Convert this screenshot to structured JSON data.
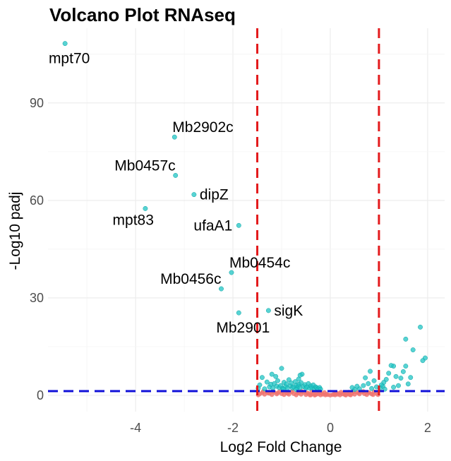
{
  "chart_data": {
    "type": "scatter",
    "title": "Volcano Plot RNAseq",
    "xlabel": "Log2 Fold Change",
    "ylabel": "-Log10 padj",
    "xlim": [
      -5.8,
      2.35
    ],
    "ylim": [
      -5,
      113
    ],
    "x_ticks": [
      -4,
      -2,
      0,
      2
    ],
    "y_ticks": [
      0,
      30,
      60,
      90
    ],
    "grid": true,
    "thresholds": {
      "log2fc_low": -1.5,
      "log2fc_high": 1.0,
      "neg_log10_padj": 1.3,
      "vertical_line_color": "#e31a1c",
      "horizontal_line_color": "#1010d8"
    },
    "colors": {
      "significant": "#1fc4c4",
      "not_significant": "#f07470"
    },
    "labeled_points": [
      {
        "gene": "mpt70",
        "x": -5.45,
        "y": 108.3,
        "label_anchor": "below"
      },
      {
        "gene": "Mb2902c",
        "x": -3.2,
        "y": 79.5,
        "label_anchor": "above-right"
      },
      {
        "gene": "Mb0457c",
        "x": -3.18,
        "y": 67.7,
        "label_anchor": "above-left"
      },
      {
        "gene": "dipZ",
        "x": -2.8,
        "y": 61.8,
        "label_anchor": "right"
      },
      {
        "gene": "mpt83",
        "x": -3.8,
        "y": 57.5,
        "label_anchor": "below-left"
      },
      {
        "gene": "ufaA1",
        "x": -1.88,
        "y": 52.3,
        "label_anchor": "left"
      },
      {
        "gene": "Mb0454c",
        "x": -2.03,
        "y": 37.8,
        "label_anchor": "above-right"
      },
      {
        "gene": "Mb0456c",
        "x": -2.24,
        "y": 32.8,
        "label_anchor": "above-left"
      },
      {
        "gene": "sigK",
        "x": -1.27,
        "y": 26.1,
        "label_anchor": "right"
      },
      {
        "gene": "Mb2901",
        "x": -1.88,
        "y": 25.4,
        "label_anchor": "below"
      }
    ],
    "significant_points": [
      [
        1.85,
        21.0
      ],
      [
        1.55,
        17.3
      ],
      [
        1.95,
        11.5
      ],
      [
        1.9,
        10.7
      ],
      [
        1.7,
        14.0
      ],
      [
        1.55,
        9.0
      ],
      [
        1.5,
        7.3
      ],
      [
        1.45,
        5.3
      ],
      [
        1.6,
        3.5
      ],
      [
        1.65,
        5.5
      ],
      [
        1.35,
        5.8
      ],
      [
        1.3,
        9.0
      ],
      [
        1.25,
        9.2
      ],
      [
        1.2,
        6.8
      ],
      [
        1.15,
        4.9
      ],
      [
        1.1,
        4.0
      ],
      [
        1.08,
        2.8
      ],
      [
        1.3,
        2.5
      ],
      [
        1.4,
        3.0
      ],
      [
        1.05,
        3.2
      ],
      [
        1.12,
        1.9
      ],
      [
        1.02,
        2.2
      ],
      [
        0.9,
        4.5
      ],
      [
        0.82,
        7.4
      ],
      [
        0.78,
        3.6
      ],
      [
        0.72,
        5.4
      ],
      [
        0.68,
        3.0
      ],
      [
        0.85,
        2.1
      ],
      [
        0.95,
        2.6
      ],
      [
        0.6,
        2.0
      ],
      [
        0.55,
        2.8
      ],
      [
        0.5,
        1.8
      ],
      [
        0.45,
        2.4
      ],
      [
        -1.48,
        2.2
      ],
      [
        -1.45,
        3.2
      ],
      [
        -1.4,
        5.5
      ],
      [
        -1.35,
        2.0
      ],
      [
        -1.3,
        4.1
      ],
      [
        -1.25,
        2.6
      ],
      [
        -1.22,
        3.4
      ],
      [
        -1.2,
        6.5
      ],
      [
        -1.18,
        2.2
      ],
      [
        -1.15,
        3.6
      ],
      [
        -1.1,
        2.8
      ],
      [
        -1.08,
        4.5
      ],
      [
        -1.05,
        2.4
      ],
      [
        -1.02,
        3.0
      ],
      [
        -1.0,
        8.3
      ],
      [
        -0.98,
        2.1
      ],
      [
        -0.95,
        4.0
      ],
      [
        -0.92,
        2.7
      ],
      [
        -0.9,
        3.5
      ],
      [
        -0.88,
        2.2
      ],
      [
        -0.85,
        4.8
      ],
      [
        -0.82,
        2.9
      ],
      [
        -0.8,
        3.8
      ],
      [
        -0.78,
        2.3
      ],
      [
        -0.75,
        2.6
      ],
      [
        -0.72,
        4.2
      ],
      [
        -0.7,
        3.1
      ],
      [
        -0.68,
        2.2
      ],
      [
        -0.66,
        2.8
      ],
      [
        -0.64,
        3.4
      ],
      [
        -0.62,
        2.4
      ],
      [
        -0.6,
        3.9
      ],
      [
        -0.58,
        6.5
      ],
      [
        -0.55,
        2.7
      ],
      [
        -0.52,
        3.3
      ],
      [
        -0.5,
        2.2
      ],
      [
        -0.48,
        2.6
      ],
      [
        -0.45,
        3.6
      ],
      [
        -0.42,
        2.2
      ],
      [
        -0.4,
        2.9
      ],
      [
        -0.38,
        2.4
      ],
      [
        -0.35,
        3.2
      ],
      [
        -0.32,
        2.1
      ],
      [
        -0.3,
        2.6
      ],
      [
        -0.28,
        2.3
      ],
      [
        -0.25,
        2.0
      ],
      [
        -0.22,
        2.4
      ],
      [
        -0.2,
        1.9
      ],
      [
        -0.62,
        6.2
      ],
      [
        -0.65,
        5.0
      ],
      [
        -1.12,
        5.8
      ],
      [
        -0.7,
        1.8
      ],
      [
        -0.96,
        1.9
      ]
    ],
    "not_significant_points": [
      [
        -1.45,
        0.4
      ],
      [
        -1.4,
        0.8
      ],
      [
        -1.35,
        0.3
      ],
      [
        -1.3,
        1.0
      ],
      [
        -1.25,
        0.6
      ],
      [
        -1.2,
        0.2
      ],
      [
        -1.15,
        0.9
      ],
      [
        -1.1,
        0.4
      ],
      [
        -1.05,
        1.1
      ],
      [
        -1.0,
        0.5
      ],
      [
        -0.95,
        0.2
      ],
      [
        -0.9,
        0.8
      ],
      [
        -0.85,
        0.3
      ],
      [
        -0.8,
        1.0
      ],
      [
        -0.75,
        0.5
      ],
      [
        -0.7,
        0.1
      ],
      [
        -0.65,
        0.7
      ],
      [
        -0.6,
        0.3
      ],
      [
        -0.55,
        0.9
      ],
      [
        -0.5,
        0.2
      ],
      [
        -0.45,
        0.6
      ],
      [
        -0.4,
        0.1
      ],
      [
        -0.35,
        0.5
      ],
      [
        -0.3,
        0.2
      ],
      [
        -0.25,
        0.4
      ],
      [
        -0.2,
        0.1
      ],
      [
        -0.15,
        0.3
      ],
      [
        -0.1,
        0.1
      ],
      [
        -0.05,
        0.2
      ],
      [
        0.0,
        0.05
      ],
      [
        0.05,
        0.2
      ],
      [
        0.1,
        0.1
      ],
      [
        0.15,
        0.3
      ],
      [
        0.2,
        0.1
      ],
      [
        0.25,
        0.4
      ],
      [
        0.3,
        0.2
      ],
      [
        0.35,
        0.5
      ],
      [
        0.4,
        0.2
      ],
      [
        0.45,
        0.7
      ],
      [
        0.5,
        0.3
      ],
      [
        0.55,
        0.9
      ],
      [
        0.6,
        0.4
      ],
      [
        0.65,
        1.0
      ],
      [
        0.7,
        0.5
      ],
      [
        0.75,
        0.2
      ],
      [
        0.8,
        0.8
      ],
      [
        0.85,
        0.4
      ],
      [
        0.9,
        1.1
      ],
      [
        0.95,
        0.6
      ],
      [
        0.98,
        0.2
      ],
      [
        -1.48,
        0.1
      ],
      [
        -1.38,
        1.2
      ],
      [
        -1.28,
        0.7
      ],
      [
        -1.18,
        1.2
      ],
      [
        -1.08,
        0.7
      ],
      [
        -0.98,
        1.2
      ],
      [
        -0.88,
        0.6
      ],
      [
        -0.78,
        1.2
      ],
      [
        -0.68,
        0.9
      ],
      [
        -0.58,
        1.2
      ],
      [
        -0.48,
        0.8
      ],
      [
        -0.38,
        1.0
      ],
      [
        -0.28,
        0.7
      ],
      [
        -0.18,
        0.6
      ],
      [
        -0.08,
        0.4
      ],
      [
        0.08,
        0.4
      ],
      [
        0.18,
        0.6
      ],
      [
        0.28,
        0.8
      ],
      [
        0.38,
        1.0
      ],
      [
        0.48,
        1.2
      ],
      [
        0.58,
        0.7
      ],
      [
        0.68,
        1.2
      ],
      [
        0.78,
        0.9
      ],
      [
        0.88,
        0.2
      ],
      [
        0.12,
        0.8
      ],
      [
        -0.12,
        0.9
      ],
      [
        0.22,
        1.0
      ],
      [
        -0.22,
        1.1
      ],
      [
        0.32,
        0.05
      ],
      [
        -0.32,
        0.05
      ],
      [
        0.42,
        0.1
      ],
      [
        -0.42,
        0.1
      ]
    ]
  }
}
